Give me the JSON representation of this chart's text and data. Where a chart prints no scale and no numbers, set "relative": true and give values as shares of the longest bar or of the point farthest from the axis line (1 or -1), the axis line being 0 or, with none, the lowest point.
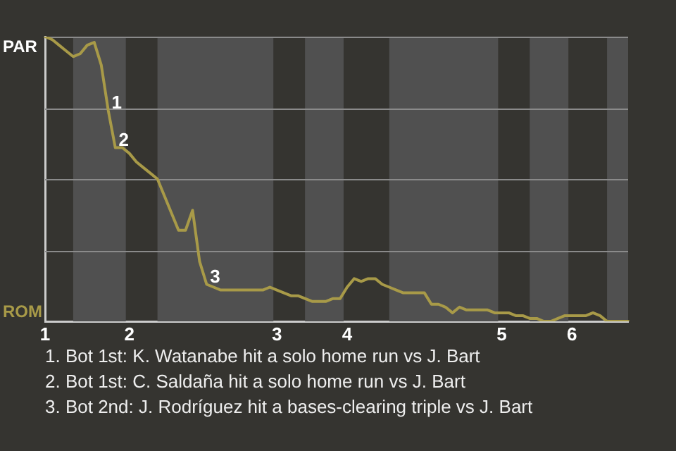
{
  "chart_data": {
    "type": "line",
    "relative": true,
    "categories": [
      "1",
      null,
      null,
      null,
      null,
      null,
      null,
      null,
      null,
      null,
      null,
      null,
      "2",
      null,
      null,
      null,
      null,
      null,
      null,
      null,
      null,
      null,
      null,
      null,
      null,
      null,
      null,
      null,
      null,
      null,
      null,
      null,
      null,
      "3",
      null,
      null,
      null,
      null,
      null,
      null,
      null,
      null,
      null,
      "4",
      null,
      null,
      null,
      null,
      null,
      null,
      null,
      null,
      null,
      null,
      null,
      null,
      null,
      null,
      null,
      null,
      null,
      null,
      null,
      null,
      null,
      "5",
      null,
      null,
      null,
      null,
      null,
      null,
      null,
      null,
      null,
      "6",
      null,
      null,
      null,
      null,
      null,
      null,
      null,
      null
    ],
    "series": [
      {
        "color": "#a89a48",
        "values": [
          1,
          0.99,
          0.97,
          0.95,
          0.93,
          0.94,
          0.97,
          0.98,
          0.9,
          0.74,
          0.61,
          0.61,
          0.59,
          0.56,
          0.54,
          0.52,
          0.5,
          0.44,
          0.38,
          0.32,
          0.32,
          0.39,
          0.21,
          0.13,
          0.12,
          0.11,
          0.11,
          0.11,
          0.11,
          0.11,
          0.11,
          0.11,
          0.12,
          0.11,
          0.1,
          0.09,
          0.09,
          0.08,
          0.07,
          0.07,
          0.07,
          0.08,
          0.08,
          0.12,
          0.15,
          0.14,
          0.15,
          0.15,
          0.13,
          0.12,
          0.11,
          0.1,
          0.1,
          0.1,
          0.1,
          0.06,
          0.06,
          0.05,
          0.03,
          0.05,
          0.04,
          0.04,
          0.04,
          0.04,
          0.03,
          0.03,
          0.03,
          0.02,
          0.02,
          0.01,
          0.01,
          0,
          0,
          0.01,
          0.02,
          0.02,
          0.02,
          0.02,
          0.03,
          0.02,
          0,
          0,
          0,
          0
        ]
      }
    ],
    "grid": "y",
    "legend": false,
    "annotations": [
      "PAR",
      "ROM",
      {
        "text": "1",
        "y": 0.74
      },
      {
        "text": "2",
        "y": 0.61
      },
      {
        "text": "3",
        "y": 0.13
      },
      "1. Bot 1st: K. Watanabe hit a solo home run vs J. Bart",
      "2. Bot 1st: C. Saldaña hit a solo home run vs J. Bart",
      "3. Bot 2nd: J. Rodríguez hit a bases-clearing triple vs J. Bart"
    ]
  }
}
